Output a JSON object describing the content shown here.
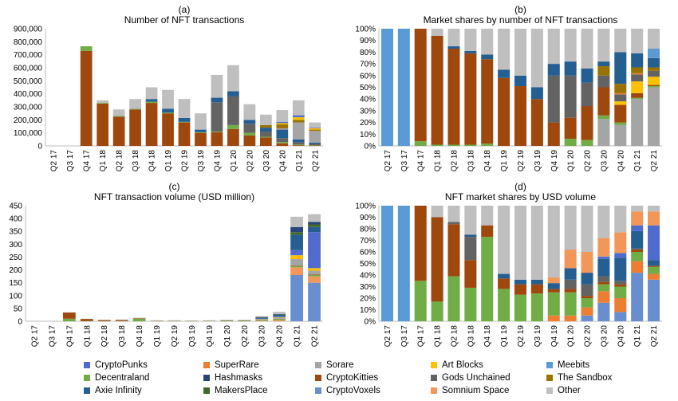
{
  "quarters": [
    "Q2 17",
    "Q3 17",
    "Q4 17",
    "Q1 18",
    "Q2 18",
    "Q3 18",
    "Q4 18",
    "Q1 19",
    "Q2 19",
    "Q3 19",
    "Q4 19",
    "Q1 20",
    "Q2 20",
    "Q3 20",
    "Q4 20",
    "Q1 21",
    "Q2 21"
  ],
  "categories": [
    "CryptoPunks",
    "SuperRare",
    "Sorare",
    "Art Blocks",
    "Meebits",
    "Decentraland",
    "Hashmasks",
    "CryptoKitties",
    "Gods Unchained",
    "The Sandbox",
    "Axie Infinity",
    "MakersPlace",
    "CryptoVoxels",
    "Somnium Space",
    "Other"
  ],
  "colors": {
    "CryptoPunks": "#4f6bcd",
    "SuperRare": "#ed7d31",
    "Sorare": "#a5a5a5",
    "Art Blocks": "#ffc000",
    "Meebits": "#5b9bd5",
    "Decentraland": "#70ad47",
    "Hashmasks": "#264478",
    "CryptoKitties": "#9e480e",
    "Gods Unchained": "#636363",
    "The Sandbox": "#997300",
    "Axie Infinity": "#255e91",
    "MakersPlace": "#43682b",
    "CryptoVoxels": "#698ed0",
    "Somnium Space": "#f1975a",
    "Other": "#bfbfbf"
  },
  "chart_data": [
    {
      "type": "bar",
      "stacked": true,
      "panel": "(a)",
      "title": "Number of NFT transactions",
      "ylim": [
        0,
        900000
      ],
      "yticks": [
        0,
        100000,
        200000,
        300000,
        400000,
        500000,
        600000,
        700000,
        800000,
        900000
      ],
      "ytick_labels": [
        "0",
        "100,000",
        "200,000",
        "300,000",
        "400,000",
        "500,000",
        "600,000",
        "700,000",
        "800,000",
        "900,000"
      ],
      "series": [
        {
          "name": "CryptoKitties",
          "values": [
            0,
            0,
            730000,
            325000,
            225000,
            280000,
            330000,
            250000,
            180000,
            100000,
            105000,
            130000,
            80000,
            65000,
            20000,
            5000,
            3000
          ]
        },
        {
          "name": "Decentraland",
          "values": [
            0,
            0,
            35000,
            5000,
            5000,
            5000,
            10000,
            5000,
            5000,
            5000,
            5000,
            30000,
            20000,
            5000,
            10000,
            5000,
            2000
          ]
        },
        {
          "name": "Gods Unchained",
          "values": [
            0,
            0,
            0,
            0,
            0,
            0,
            0,
            0,
            0,
            0,
            225000,
            220000,
            70000,
            40000,
            30000,
            20000,
            10000
          ]
        },
        {
          "name": "Axie Infinity",
          "values": [
            0,
            0,
            0,
            0,
            0,
            0,
            20000,
            30000,
            30000,
            20000,
            35000,
            40000,
            30000,
            30000,
            65000,
            20000,
            10000
          ]
        },
        {
          "name": "Sorare",
          "values": [
            0,
            0,
            0,
            0,
            0,
            0,
            0,
            0,
            0,
            0,
            0,
            0,
            0,
            0,
            10000,
            130000,
            90000
          ]
        },
        {
          "name": "The Sandbox",
          "values": [
            0,
            0,
            0,
            0,
            0,
            0,
            0,
            0,
            0,
            0,
            0,
            0,
            0,
            20000,
            30000,
            20000,
            10000
          ]
        },
        {
          "name": "Art Blocks",
          "values": [
            0,
            0,
            0,
            0,
            0,
            0,
            0,
            0,
            0,
            0,
            0,
            0,
            0,
            0,
            10000,
            20000,
            10000
          ]
        },
        {
          "name": "CryptoPunks",
          "values": [
            0,
            0,
            0,
            0,
            0,
            0,
            0,
            0,
            0,
            0,
            0,
            0,
            0,
            0,
            10000,
            15000,
            5000
          ]
        },
        {
          "name": "Other",
          "values": [
            0,
            0,
            0,
            20000,
            50000,
            75000,
            90000,
            145000,
            145000,
            125000,
            175000,
            200000,
            120000,
            80000,
            90000,
            115000,
            40000
          ]
        }
      ]
    },
    {
      "type": "bar",
      "stacked": true,
      "panel": "(b)",
      "title": "Market shares by number of NFT transactions",
      "ylim": [
        0,
        100
      ],
      "yticks": [
        0,
        10,
        20,
        30,
        40,
        50,
        60,
        70,
        80,
        90,
        100
      ],
      "ytick_labels": [
        "0%",
        "10%",
        "20%",
        "30%",
        "40%",
        "50%",
        "60%",
        "70%",
        "80%",
        "90%",
        "100%"
      ],
      "series": [
        {
          "name": "Sorare",
          "values": [
            0,
            0,
            0,
            0,
            0,
            0,
            0,
            0,
            0,
            0,
            0,
            0,
            0,
            23,
            18,
            40,
            50
          ]
        },
        {
          "name": "Decentraland",
          "values": [
            0,
            0,
            4,
            1,
            1,
            1,
            2,
            0,
            0,
            0,
            0,
            6,
            5,
            3,
            2,
            1,
            1
          ]
        },
        {
          "name": "CryptoKitties",
          "values": [
            0,
            0,
            96,
            93,
            82,
            78,
            72,
            58,
            51,
            40,
            20,
            18,
            29,
            24,
            15,
            4,
            1
          ]
        },
        {
          "name": "Art Blocks",
          "values": [
            0,
            0,
            0,
            0,
            0,
            0,
            0,
            0,
            0,
            0,
            0,
            0,
            0,
            0,
            3,
            10,
            7
          ]
        },
        {
          "name": "Gods Unchained",
          "values": [
            0,
            0,
            0,
            0,
            0,
            0,
            0,
            0,
            0,
            0,
            40,
            36,
            20,
            10,
            6,
            6,
            5
          ]
        },
        {
          "name": "SuperRare",
          "values": [
            0,
            0,
            0,
            0,
            0,
            0,
            0,
            0,
            0,
            0,
            0,
            0,
            0,
            0,
            1,
            1,
            0
          ]
        },
        {
          "name": "The Sandbox",
          "values": [
            0,
            0,
            0,
            0,
            0,
            0,
            0,
            0,
            0,
            0,
            0,
            0,
            0,
            8,
            8,
            5,
            3
          ]
        },
        {
          "name": "Axie Infinity",
          "values": [
            0,
            0,
            0,
            0,
            2,
            2,
            4,
            7,
            9,
            10,
            10,
            12,
            12,
            4,
            27,
            12,
            8
          ]
        },
        {
          "name": "Meebits",
          "values": [
            100,
            100,
            0,
            0,
            0,
            0,
            0,
            0,
            0,
            0,
            0,
            0,
            0,
            0,
            0,
            0,
            8
          ]
        },
        {
          "name": "Other",
          "values": [
            0,
            0,
            0,
            6,
            15,
            19,
            22,
            35,
            40,
            50,
            30,
            28,
            34,
            28,
            20,
            21,
            17
          ]
        }
      ]
    },
    {
      "type": "bar",
      "stacked": true,
      "panel": "(c)",
      "title": "NFT transaction volume (USD million)",
      "ylim": [
        0,
        450
      ],
      "yticks": [
        0,
        50,
        100,
        150,
        200,
        250,
        300,
        350,
        400,
        450
      ],
      "ytick_labels": [
        "0",
        "50",
        "100",
        "150",
        "200",
        "250",
        "300",
        "350",
        "400",
        "450"
      ],
      "series": [
        {
          "name": "CryptoVoxels",
          "values": [
            0,
            0,
            0,
            0,
            0,
            0,
            0,
            0,
            0,
            0,
            0,
            0,
            0,
            0,
            0,
            180,
            150
          ]
        },
        {
          "name": "Somnium Space",
          "values": [
            0,
            0,
            0,
            0,
            0,
            0,
            0,
            0,
            0,
            0,
            0,
            0,
            0,
            2,
            4,
            30,
            25
          ]
        },
        {
          "name": "Decentraland",
          "values": [
            0,
            0,
            10,
            1,
            1,
            1,
            10,
            1,
            1,
            1,
            1,
            2,
            2,
            3,
            5,
            5,
            5
          ]
        },
        {
          "name": "CryptoKitties",
          "values": [
            0,
            0,
            24,
            8,
            4,
            4,
            2,
            1,
            1,
            1,
            1,
            1,
            1,
            1,
            1,
            2,
            2
          ]
        },
        {
          "name": "Sorare",
          "values": [
            0,
            0,
            0,
            0,
            0,
            0,
            0,
            0,
            0,
            0,
            0,
            0,
            0,
            2,
            4,
            25,
            15
          ]
        },
        {
          "name": "Art Blocks",
          "values": [
            0,
            0,
            0,
            0,
            0,
            0,
            0,
            0,
            0,
            0,
            0,
            0,
            0,
            1,
            2,
            15,
            10
          ]
        },
        {
          "name": "CryptoPunks",
          "values": [
            0,
            0,
            0,
            0,
            0,
            0,
            0,
            0,
            0,
            0,
            0,
            0,
            0,
            2,
            4,
            20,
            140
          ]
        },
        {
          "name": "Axie Infinity",
          "values": [
            0,
            0,
            0,
            0,
            0,
            0,
            0,
            0,
            0,
            0,
            0,
            1,
            1,
            3,
            6,
            60,
            20
          ]
        },
        {
          "name": "MakersPlace",
          "values": [
            0,
            0,
            0,
            0,
            0,
            0,
            0,
            0,
            0,
            0,
            0,
            0,
            0,
            2,
            2,
            10,
            10
          ]
        },
        {
          "name": "Hashmasks",
          "values": [
            0,
            0,
            0,
            0,
            0,
            0,
            0,
            0,
            0,
            0,
            0,
            0,
            0,
            0,
            0,
            20,
            10
          ]
        },
        {
          "name": "Other",
          "values": [
            2,
            2,
            1,
            1,
            1,
            2,
            2,
            2,
            2,
            1,
            2,
            2,
            2,
            5,
            9,
            40,
            30
          ]
        }
      ]
    },
    {
      "type": "bar",
      "stacked": true,
      "panel": "(d)",
      "title": "NFT market shares by USD volume",
      "ylim": [
        0,
        100
      ],
      "yticks": [
        0,
        10,
        20,
        30,
        40,
        50,
        60,
        70,
        80,
        90,
        100
      ],
      "ytick_labels": [
        "0%",
        "10%",
        "20%",
        "30%",
        "40%",
        "50%",
        "60%",
        "70%",
        "80%",
        "90%",
        "100%"
      ],
      "series": [
        {
          "name": "CryptoVoxels",
          "values": [
            0,
            0,
            0,
            0,
            0,
            0,
            0,
            0,
            0,
            0,
            0,
            0,
            5,
            16,
            8,
            42,
            36
          ]
        },
        {
          "name": "SuperRare",
          "values": [
            0,
            0,
            0,
            0,
            0,
            0,
            0,
            0,
            0,
            0,
            5,
            5,
            7,
            10,
            12,
            10,
            5
          ]
        },
        {
          "name": "Decentraland",
          "values": [
            0,
            0,
            35,
            17,
            39,
            29,
            73,
            28,
            23,
            24,
            20,
            20,
            8,
            6,
            10,
            8,
            6
          ]
        },
        {
          "name": "CryptoKitties",
          "values": [
            0,
            0,
            65,
            73,
            45,
            24,
            10,
            9,
            9,
            8,
            3,
            3,
            2,
            2,
            2,
            2,
            1
          ]
        },
        {
          "name": "Gods Unchained",
          "values": [
            0,
            0,
            0,
            0,
            2,
            20,
            0,
            0,
            0,
            0,
            0,
            8,
            10,
            5,
            3,
            1,
            0
          ]
        },
        {
          "name": "Axie Infinity",
          "values": [
            0,
            0,
            0,
            0,
            0,
            2,
            0,
            4,
            4,
            4,
            5,
            10,
            10,
            15,
            20,
            15,
            5
          ]
        },
        {
          "name": "CryptoPunks",
          "values": [
            0,
            0,
            0,
            0,
            0,
            0,
            0,
            0,
            0,
            0,
            0,
            0,
            0,
            2,
            4,
            5,
            30
          ]
        },
        {
          "name": "Somnium Space",
          "values": [
            0,
            0,
            0,
            0,
            0,
            0,
            0,
            0,
            0,
            0,
            5,
            16,
            18,
            16,
            18,
            12,
            12
          ]
        },
        {
          "name": "Meebits",
          "values": [
            100,
            100,
            0,
            0,
            0,
            0,
            0,
            0,
            0,
            0,
            0,
            0,
            0,
            0,
            0,
            0,
            0
          ]
        },
        {
          "name": "Other",
          "values": [
            0,
            0,
            0,
            10,
            14,
            25,
            17,
            59,
            64,
            64,
            62,
            38,
            40,
            28,
            23,
            5,
            5
          ]
        }
      ]
    }
  ],
  "legend": [
    "CryptoPunks",
    "SuperRare",
    "Sorare",
    "Art Blocks",
    "Meebits",
    "Decentraland",
    "Hashmasks",
    "CryptoKitties",
    "Gods Unchained",
    "The Sandbox",
    "Axie Infinity",
    "MakersPlace",
    "CryptoVoxels",
    "Somnium Space",
    "Other"
  ]
}
